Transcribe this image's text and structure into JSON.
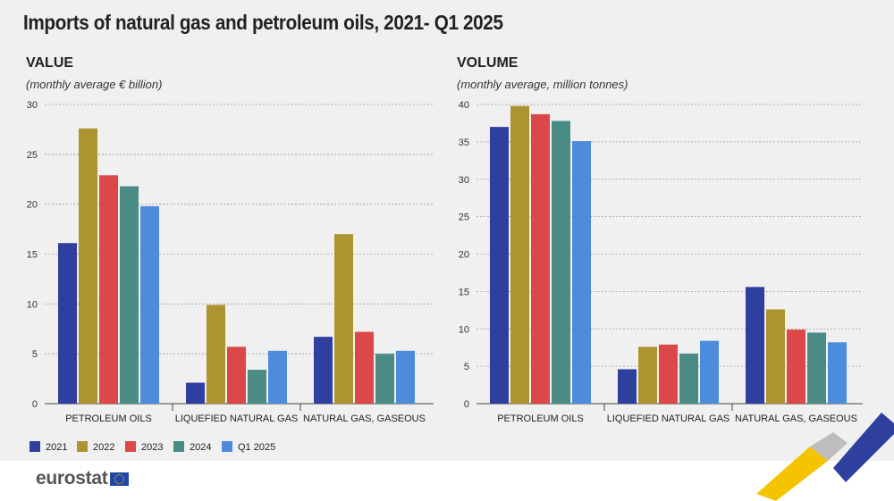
{
  "title": "Imports of natural gas and petroleum oils, 2021- Q1 2025",
  "brand": {
    "logo_text": "eurostat"
  },
  "colors": {
    "series": [
      "#2e3f9e",
      "#ae9331",
      "#dc4748",
      "#4a8c85",
      "#4d8bdd"
    ],
    "accent_yellow": "#f5c400",
    "accent_blue": "#2e3f9e",
    "background": "#f0f0f0"
  },
  "legend": [
    "2021",
    "2022",
    "2023",
    "2024",
    "Q1 2025"
  ],
  "chart_data": [
    {
      "type": "bar",
      "title": "VALUE",
      "subtitle": "(monthly average € billion)",
      "categories": [
        "PETROLEUM OILS",
        "LIQUEFIED NATURAL GAS",
        "NATURAL GAS, GASEOUS"
      ],
      "series": [
        {
          "name": "2021",
          "values": [
            16.1,
            2.1,
            6.7
          ]
        },
        {
          "name": "2022",
          "values": [
            27.6,
            9.9,
            17.0
          ]
        },
        {
          "name": "2023",
          "values": [
            22.9,
            5.7,
            7.2
          ]
        },
        {
          "name": "2024",
          "values": [
            21.8,
            3.4,
            5.0
          ]
        },
        {
          "name": "Q1 2025",
          "values": [
            19.8,
            5.3,
            5.3
          ]
        }
      ],
      "ylim": [
        0,
        30
      ],
      "yticks": [
        0,
        5,
        10,
        15,
        20,
        25,
        30
      ],
      "grid": true,
      "legend_position": "bottom-left"
    },
    {
      "type": "bar",
      "title": "VOLUME",
      "subtitle": "(monthly average, million tonnes)",
      "categories": [
        "PETROLEUM OILS",
        "LIQUEFIED NATURAL GAS",
        "NATURAL GAS, GASEOUS"
      ],
      "series": [
        {
          "name": "2021",
          "values": [
            37.0,
            4.6,
            15.6
          ]
        },
        {
          "name": "2022",
          "values": [
            39.8,
            7.6,
            12.6
          ]
        },
        {
          "name": "2023",
          "values": [
            38.7,
            7.9,
            9.9
          ]
        },
        {
          "name": "2024",
          "values": [
            37.8,
            6.7,
            9.5
          ]
        },
        {
          "name": "Q1 2025",
          "values": [
            35.1,
            8.4,
            8.2
          ]
        }
      ],
      "ylim": [
        0,
        40
      ],
      "yticks": [
        0,
        5,
        10,
        15,
        20,
        25,
        30,
        35,
        40
      ],
      "grid": true
    }
  ]
}
